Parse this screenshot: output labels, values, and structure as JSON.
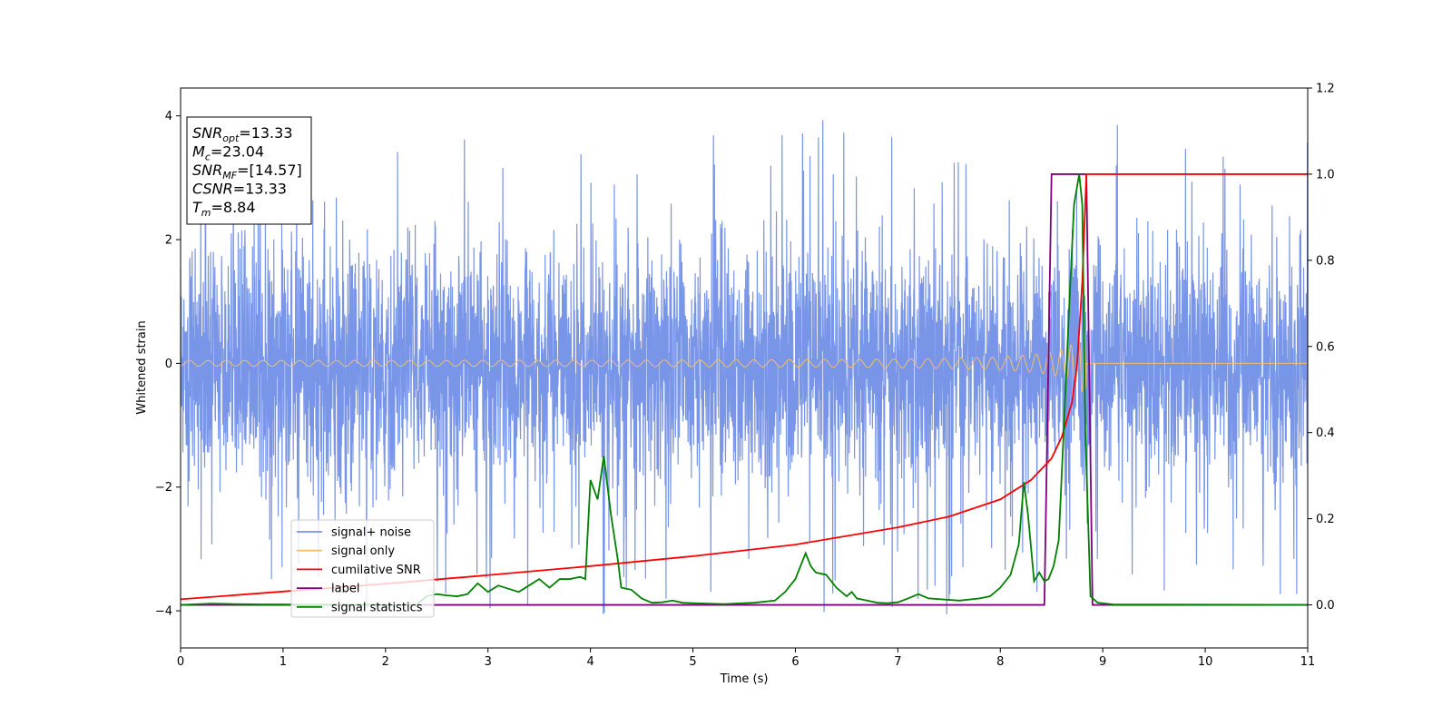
{
  "chart_data": {
    "type": "line",
    "xlabel": "Time (s)",
    "ylabel": "Whitened strain",
    "xlim": [
      0,
      11
    ],
    "ylim_left": [
      -4.6,
      4.45
    ],
    "ylim_right": [
      -0.1,
      1.2
    ],
    "xticks": [
      "0",
      "1",
      "2",
      "3",
      "4",
      "5",
      "6",
      "7",
      "8",
      "9",
      "10",
      "11"
    ],
    "yticks_left": [
      "−4",
      "−2",
      "0",
      "2",
      "4"
    ],
    "yticks_right": [
      "0.0",
      "0.2",
      "0.4",
      "0.6",
      "0.8",
      "1.0",
      "1.2"
    ],
    "info_box": [
      {
        "base": "SNR",
        "sub": "opt",
        "rest": "=13.33"
      },
      {
        "base": "M",
        "sub": "c",
        "rest": "=23.04"
      },
      {
        "base": "SNR",
        "sub": "MF",
        "rest": "=[14.57]"
      },
      {
        "base": "CSNR",
        "sub": "",
        "rest": "=13.33"
      },
      {
        "base": "T",
        "sub": "m",
        "rest": "=8.84"
      }
    ],
    "legend": {
      "position": "lower-left",
      "entries": [
        {
          "label": "signal+ noise",
          "color": "#7895e8"
        },
        {
          "label": "signal only",
          "color": "#f5be6a"
        },
        {
          "label": "cumilative SNR",
          "color": "#ff0000"
        },
        {
          "label": "label",
          "color": "#800080"
        },
        {
          "label": "signal statistics",
          "color": "#008000"
        }
      ]
    },
    "series": [
      {
        "name": "signal+ noise",
        "axis": "left",
        "color": "#7895e8",
        "style": "dense noise, amplitude about ±2.5 with spikes to about ±4"
      },
      {
        "name": "signal only",
        "axis": "left",
        "color": "#f5be6a",
        "style": "chirp, growing amplitude until merger at 8.84 s"
      },
      {
        "name": "cumilative SNR",
        "axis": "right",
        "color": "#ff0000",
        "x": [
          0,
          1,
          2,
          3,
          4,
          5,
          6,
          7,
          7.5,
          8,
          8.3,
          8.5,
          8.6,
          8.7,
          8.75,
          8.8,
          8.84,
          11
        ],
        "y": [
          0.013,
          0.031,
          0.049,
          0.069,
          0.09,
          0.113,
          0.14,
          0.18,
          0.205,
          0.245,
          0.29,
          0.34,
          0.39,
          0.47,
          0.56,
          0.75,
          1.0,
          1.0
        ]
      },
      {
        "name": "label",
        "axis": "right",
        "color": "#800080",
        "x": [
          0,
          8.43,
          8.5,
          8.84,
          8.9,
          11
        ],
        "y": [
          0,
          0,
          1,
          1,
          0,
          0
        ]
      },
      {
        "name": "signal statistics",
        "axis": "right",
        "color": "#008000",
        "x": [
          0,
          0.3,
          0.5,
          0.8,
          1.0,
          1.3,
          1.6,
          2.0,
          2.3,
          2.4,
          2.5,
          2.6,
          2.7,
          2.8,
          2.9,
          2.95,
          3.0,
          3.1,
          3.3,
          3.4,
          3.5,
          3.6,
          3.7,
          3.8,
          3.9,
          3.95,
          4.0,
          4.07,
          4.13,
          4.2,
          4.27,
          4.3,
          4.4,
          4.5,
          4.6,
          4.7,
          4.8,
          4.9,
          5.0,
          5.3,
          5.6,
          5.8,
          5.9,
          6.0,
          6.1,
          6.15,
          6.2,
          6.3,
          6.4,
          6.5,
          6.55,
          6.6,
          6.7,
          6.8,
          6.9,
          7.0,
          7.1,
          7.2,
          7.3,
          7.6,
          7.8,
          7.9,
          8.0,
          8.1,
          8.18,
          8.23,
          8.27,
          8.33,
          8.38,
          8.43,
          8.47,
          8.52,
          8.57,
          8.62,
          8.67,
          8.72,
          8.77,
          8.8,
          8.83,
          8.88,
          8.95,
          9.1,
          11
        ],
        "y": [
          0,
          0.003,
          0.002,
          0.001,
          0.001,
          0.0,
          0.001,
          0.0,
          0.0,
          0.02,
          0.025,
          0.022,
          0.02,
          0.025,
          0.05,
          0.04,
          0.03,
          0.045,
          0.03,
          0.045,
          0.06,
          0.04,
          0.06,
          0.06,
          0.065,
          0.06,
          0.29,
          0.245,
          0.345,
          0.21,
          0.1,
          0.04,
          0.035,
          0.015,
          0.005,
          0.006,
          0.01,
          0.005,
          0.004,
          0.002,
          0.005,
          0.01,
          0.03,
          0.06,
          0.12,
          0.09,
          0.075,
          0.07,
          0.04,
          0.02,
          0.03,
          0.015,
          0.01,
          0.005,
          0.004,
          0.006,
          0.015,
          0.025,
          0.015,
          0.01,
          0.015,
          0.02,
          0.04,
          0.07,
          0.14,
          0.285,
          0.21,
          0.055,
          0.075,
          0.055,
          0.06,
          0.09,
          0.15,
          0.41,
          0.68,
          0.93,
          1.0,
          0.93,
          0.4,
          0.02,
          0.005,
          0.001,
          0.0
        ]
      }
    ]
  }
}
